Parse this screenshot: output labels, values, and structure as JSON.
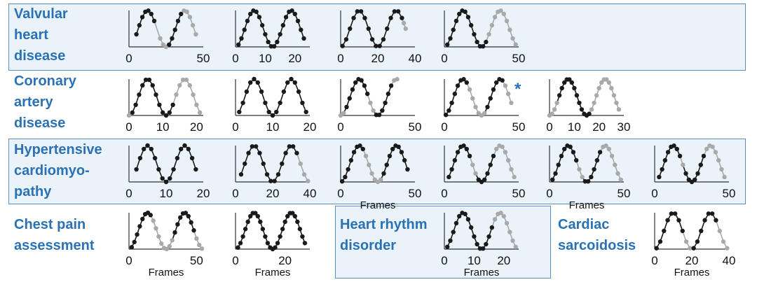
{
  "colors": {
    "label": "#2a72b5",
    "band_fill": "#eaf2fa",
    "band_border": "#5b8fbd",
    "dark": "#1a1a1a",
    "light": "#a9a9a9"
  },
  "rows": [
    {
      "label_lines": [
        "Valvular",
        "heart",
        "disease"
      ],
      "shaded": true
    },
    {
      "label_lines": [
        "Coronary",
        "artery",
        "disease"
      ],
      "shaded": false
    },
    {
      "label_lines": [
        "Hypertensive",
        "cardiomyo-",
        "pathy"
      ],
      "shaded": true
    },
    {
      "label_lines": [
        "Chest pain",
        "assessment"
      ],
      "shaded": false
    }
  ],
  "extra_groups": [
    {
      "label_lines": [
        "Heart rhythm",
        "disorder"
      ],
      "shaded": true
    },
    {
      "label_lines": [
        "Cardiac",
        "sarcoidosis"
      ],
      "shaded": false
    }
  ],
  "chart_data": [
    {
      "type": "scatter",
      "group": "Valvular heart disease",
      "xticks": [
        "0",
        "50"
      ],
      "xlabel": "",
      "xlim": [
        0,
        50
      ],
      "dark_x": [
        5,
        7,
        9,
        11,
        13,
        15,
        17,
        27,
        29,
        31,
        33,
        35
      ],
      "light_x": [
        21,
        23,
        25,
        37,
        39,
        41,
        43,
        45
      ]
    },
    {
      "type": "scatter",
      "group": "Valvular heart disease",
      "xticks": [
        "0",
        "10",
        "20"
      ],
      "xlabel": "",
      "xlim": [
        0,
        25
      ],
      "dark_x": [
        1,
        2,
        3,
        4,
        5,
        6,
        7,
        8,
        9,
        10,
        11,
        12,
        13,
        14,
        15,
        16,
        17,
        18,
        19,
        20,
        21,
        22,
        23
      ],
      "light_x": []
    },
    {
      "type": "scatter",
      "group": "Valvular heart disease",
      "xticks": [
        "0",
        "20",
        "40"
      ],
      "xlabel": "",
      "xlim": [
        0,
        40
      ],
      "dark_x": [
        1,
        3,
        5,
        7,
        9,
        11,
        13,
        15,
        17,
        19,
        21,
        23,
        25,
        27,
        29,
        31,
        33
      ],
      "light_x": [
        34,
        35
      ]
    },
    {
      "type": "scatter",
      "group": "Valvular heart disease",
      "xticks": [
        "0",
        "50"
      ],
      "xlabel": "",
      "xlim": [
        0,
        50
      ],
      "dark_x": [
        2,
        4,
        6,
        8,
        10,
        12,
        14,
        16,
        18,
        20,
        22,
        24,
        26,
        28
      ],
      "light_x": [
        30,
        32,
        34,
        36,
        38,
        40,
        42,
        44,
        46,
        48
      ]
    },
    {
      "type": "scatter",
      "group": "Coronary artery disease",
      "xticks": [
        "0",
        "10",
        "20"
      ],
      "xlabel": "",
      "xlim": [
        0,
        22
      ],
      "dark_x": [
        1,
        2,
        3,
        4,
        5,
        6,
        7,
        8,
        9,
        10,
        11,
        12,
        13
      ],
      "light_x": [
        0,
        14,
        15,
        16,
        17,
        18,
        19,
        20,
        21
      ]
    },
    {
      "type": "scatter",
      "group": "Coronary artery disease",
      "xticks": [
        "0",
        "10",
        "20"
      ],
      "xlabel": "",
      "xlim": [
        0,
        20
      ],
      "dark_x": [
        1,
        2,
        3,
        4,
        5,
        6,
        7,
        8,
        9,
        10,
        11,
        12,
        13,
        14,
        15,
        16,
        17,
        18,
        19
      ],
      "light_x": []
    },
    {
      "type": "scatter",
      "group": "Coronary artery disease",
      "xticks": [
        "0",
        "50"
      ],
      "xlabel": "",
      "xlim": [
        0,
        50
      ],
      "dark_x": [
        4,
        6,
        8,
        10,
        12,
        14,
        16,
        18,
        24,
        26,
        28,
        30,
        32,
        34
      ],
      "light_x": [
        0,
        2,
        20,
        22,
        36,
        38
      ]
    },
    {
      "type": "scatter",
      "group": "Coronary artery disease",
      "xticks": [
        "0",
        "50"
      ],
      "xlabel": "",
      "xlim": [
        0,
        50
      ],
      "annotation": "*",
      "dark_x": [
        1,
        3,
        5,
        7,
        9,
        11,
        13,
        15,
        29,
        31,
        33,
        35,
        37,
        39
      ],
      "light_x": [
        17,
        19,
        21,
        23,
        25,
        27,
        41,
        43,
        45
      ]
    },
    {
      "type": "scatter",
      "group": "Coronary artery disease",
      "xticks": [
        "0",
        "10",
        "20",
        "30"
      ],
      "xlabel": "",
      "xlim": [
        0,
        30
      ],
      "dark_x": [
        4,
        5,
        6,
        7,
        8,
        9,
        10,
        11,
        12,
        13,
        14,
        15,
        16
      ],
      "light_x": [
        0,
        1,
        2,
        3,
        17,
        18,
        19,
        20,
        21,
        22,
        23,
        24,
        25,
        26,
        27,
        28
      ]
    },
    {
      "type": "scatter",
      "group": "Hypertensive cardiomyopathy",
      "xticks": [
        "0",
        "10",
        "20"
      ],
      "xlabel": "",
      "xlim": [
        0,
        20
      ],
      "dark_x": [
        2,
        3,
        4,
        5,
        6,
        7,
        8,
        9,
        10,
        11,
        12,
        13,
        14,
        15,
        16,
        17,
        18
      ],
      "light_x": []
    },
    {
      "type": "scatter",
      "group": "Hypertensive cardiomyopathy",
      "xticks": [
        "0",
        "20",
        "40"
      ],
      "xlabel": "",
      "xlim": [
        0,
        40
      ],
      "dark_x": [
        3,
        5,
        7,
        9,
        11,
        13,
        15,
        17,
        19,
        21,
        23,
        25,
        27,
        29,
        31,
        33
      ],
      "light_x": [
        35,
        37,
        39
      ]
    },
    {
      "type": "scatter",
      "group": "Hypertensive cardiomyopathy",
      "xticks": [
        "0",
        "50"
      ],
      "xlabel": "Frames",
      "xlim": [
        0,
        50
      ],
      "dark_x": [
        1,
        3,
        5,
        7,
        9,
        11,
        13,
        15,
        29,
        31,
        33,
        35,
        37,
        39,
        41,
        43,
        45
      ],
      "light_x": [
        17,
        19,
        21,
        23,
        25,
        27
      ]
    },
    {
      "type": "scatter",
      "group": "Hypertensive cardiomyopathy",
      "xticks": [
        "0",
        "50"
      ],
      "xlabel": "",
      "xlim": [
        0,
        50
      ],
      "dark_x": [
        3,
        5,
        7,
        9,
        11,
        13,
        15,
        17,
        23,
        25,
        27,
        29,
        31,
        33
      ],
      "light_x": [
        19,
        21,
        35,
        37,
        39,
        41,
        43,
        45,
        47
      ]
    },
    {
      "type": "scatter",
      "group": "Hypertensive cardiomyopathy",
      "xticks": [
        "0",
        "50"
      ],
      "xlabel": "Frames",
      "xlim": [
        0,
        50
      ],
      "dark_x": [
        2,
        4,
        6,
        8,
        10,
        12,
        14,
        16,
        18,
        24,
        26,
        28,
        30,
        32,
        34
      ],
      "light_x": [
        20,
        22,
        36,
        38,
        40,
        42,
        44,
        46,
        48
      ]
    },
    {
      "type": "scatter",
      "group": "Hypertensive cardiomyopathy",
      "xticks": [
        "0",
        "50"
      ],
      "xlabel": "",
      "xlim": [
        0,
        50
      ],
      "dark_x": [
        3,
        5,
        7,
        9,
        11,
        13,
        15,
        17,
        21,
        23,
        25,
        27,
        29,
        31,
        33
      ],
      "light_x": [
        19,
        35,
        37,
        39,
        41,
        43,
        45,
        47
      ]
    },
    {
      "type": "scatter",
      "group": "Chest pain assessment",
      "xticks": [
        "0",
        "50"
      ],
      "xlabel": "Frames",
      "xlim": [
        0,
        55
      ],
      "dark_x": [
        2,
        4,
        6,
        8,
        10,
        12,
        14,
        16,
        34,
        36,
        38,
        40,
        42,
        44,
        46,
        48
      ],
      "light_x": [
        18,
        20,
        22,
        24,
        26,
        28,
        30,
        32,
        50,
        52,
        54
      ]
    },
    {
      "type": "scatter",
      "group": "Chest pain assessment",
      "xticks": [
        "0",
        "20"
      ],
      "xlabel": "Frames",
      "xlim": [
        0,
        30
      ],
      "dark_x": [
        1,
        2,
        3,
        4,
        5,
        6,
        7,
        8,
        9,
        10,
        11,
        12,
        13,
        14,
        15,
        16,
        17,
        18,
        19,
        20,
        21,
        22,
        23,
        24,
        25,
        26,
        27,
        28
      ],
      "light_x": []
    },
    {
      "type": "scatter",
      "group": "Heart rhythm disorder",
      "xticks": [
        "0",
        "10",
        "20"
      ],
      "xlabel": "Frames",
      "xlim": [
        0,
        25
      ],
      "dark_x": [
        1,
        2,
        3,
        4,
        5,
        6,
        7,
        8,
        9,
        10,
        11,
        12,
        13,
        14,
        15,
        16
      ],
      "light_x": [
        17,
        18,
        19,
        20,
        21,
        22,
        23,
        24
      ]
    },
    {
      "type": "scatter",
      "group": "Cardiac sarcoidosis",
      "xticks": [
        "0",
        "20",
        "40"
      ],
      "xlabel": "Frames",
      "xlim": [
        0,
        40
      ],
      "dark_x": [
        1,
        3,
        5,
        7,
        9,
        11,
        13,
        15,
        21,
        23,
        25,
        27,
        29,
        31,
        33
      ],
      "light_x": [
        17,
        19,
        35,
        37,
        39
      ]
    }
  ]
}
